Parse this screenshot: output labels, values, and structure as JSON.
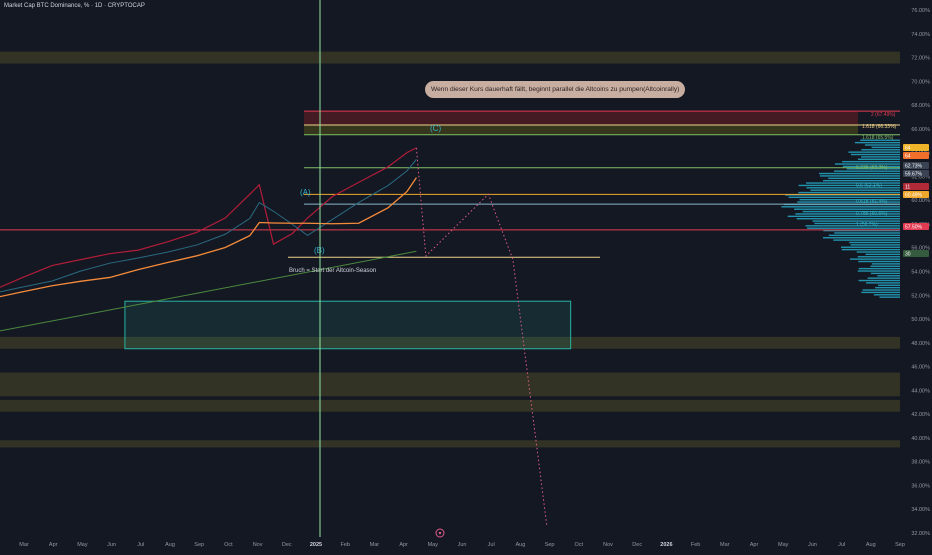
{
  "header": {
    "symbol_title": "Market Cap BTC Dominance, %  · 1D · CRYPTOCAP"
  },
  "annotations": {
    "note": "Wenn dieser Kurs dauerhaft fällt, beginnt parallel die Altcoins zu pumpen(Altcoinrally)",
    "breakout_label": "Bruch = Start der Altcoin-Season",
    "wave_a": "(A)",
    "wave_b": "(B)",
    "wave_c": "(C)"
  },
  "fibonacci": {
    "labels": [
      "2 (67.49%)",
      "1.618 (66.33%)",
      "1.618 (65.5%)",
      "0.236 (62.3%)",
      "0.5 (62.1%)",
      "0.618 (61.4%)",
      "0.786 (60.6%)",
      "1 (59.7%)"
    ]
  },
  "price_axis": {
    "labels": [
      "76.00%",
      "74.00%",
      "72.00%",
      "70.00%",
      "68.00%",
      "66.00%",
      "64.00%",
      "62.00%",
      "60.00%",
      "58.00%",
      "56.00%",
      "54.00%",
      "52.00%",
      "50.00%",
      "48.00%",
      "46.00%",
      "44.00%",
      "42.00%",
      "40.00%",
      "38.00%",
      "36.00%",
      "34.00%",
      "32.00%"
    ],
    "markers": [
      {
        "text": "64",
        "color": "#f0b429"
      },
      {
        "text": "64",
        "color": "#f06f2b"
      },
      {
        "text": "62.73%",
        "color": "#394354"
      },
      {
        "text": "59.67%",
        "color": "#394354"
      },
      {
        "text": "11",
        "color": "#b02a37"
      },
      {
        "text": "60.49%",
        "color": "#f0a72b"
      },
      {
        "text": "57.50%",
        "color": "#e23b52"
      },
      {
        "text": "30",
        "color": "#355b3f"
      }
    ]
  },
  "time_axis": {
    "labels": [
      "Mar",
      "Apr",
      "May",
      "Jun",
      "Jul",
      "Aug",
      "Sep",
      "Oct",
      "Nov",
      "Dec",
      "2025",
      "Feb",
      "Mar",
      "Apr",
      "May",
      "Jun",
      "Jul",
      "Aug",
      "Sep",
      "Oct",
      "Nov",
      "Dec",
      "2026",
      "Feb",
      "Mar",
      "Apr",
      "May",
      "Jun",
      "Jul",
      "Aug",
      "Sep"
    ]
  },
  "colors": {
    "background": "#141823",
    "price_line": "#b11d39",
    "ema_fast": "#2a6a80",
    "ema_slow": "#f58b3a",
    "ma_long": "#4c8a3f",
    "cursor_line": "#8fe6a2",
    "volume_profile": "#25a9c5",
    "zone_olive": "#4a4a26",
    "target_box": "#27b3a4",
    "projection": "#e05b89"
  },
  "chart_data": {
    "type": "line",
    "title": "Market Cap BTC Dominance, %",
    "timeframe": "1D",
    "ylim": [
      32,
      76
    ],
    "y_unit": "%",
    "x_range": [
      "2024-02",
      "2026-09"
    ],
    "series": [
      {
        "name": "BTC Dominance",
        "x": [
          "2024-02-15",
          "2024-03-15",
          "2024-04-15",
          "2024-05-15",
          "2024-06-15",
          "2024-07-15",
          "2024-08-15",
          "2024-09-15",
          "2024-10-15",
          "2024-11-10",
          "2024-11-20",
          "2024-12-05",
          "2024-12-25",
          "2025-01-10",
          "2025-02-05",
          "2025-03-05",
          "2025-04-05",
          "2025-04-25",
          "2025-05-05"
        ],
        "values": [
          52.5,
          53.5,
          54.5,
          55,
          55.5,
          55.8,
          56.5,
          57.3,
          58.5,
          60.5,
          61.3,
          56.3,
          57.2,
          58.5,
          60.3,
          61.5,
          62.8,
          64,
          64.4
        ]
      }
    ],
    "projection": {
      "x": [
        "2025-05-05",
        "2025-05-15",
        "2025-07-20",
        "2025-08-15",
        "2025-09-20"
      ],
      "values": [
        64.4,
        55.3,
        60.5,
        55,
        32.5
      ]
    },
    "horizontal_levels": [
      67.49,
      66.33,
      65.5,
      62.73,
      60.49,
      59.67,
      57.5,
      55.2
    ],
    "zones": [
      {
        "from": 71.5,
        "to": 72.5
      },
      {
        "from": 47.5,
        "to": 48.5
      },
      {
        "from": 43.5,
        "to": 45.5
      },
      {
        "from": 42.2,
        "to": 43.2
      },
      {
        "from": 39.2,
        "to": 39.8
      }
    ],
    "target_box": {
      "x0": "2024-07-01",
      "x1": "2025-10-15",
      "y0": 47.5,
      "y1": 51.5
    },
    "grid": false,
    "legend": "none"
  }
}
